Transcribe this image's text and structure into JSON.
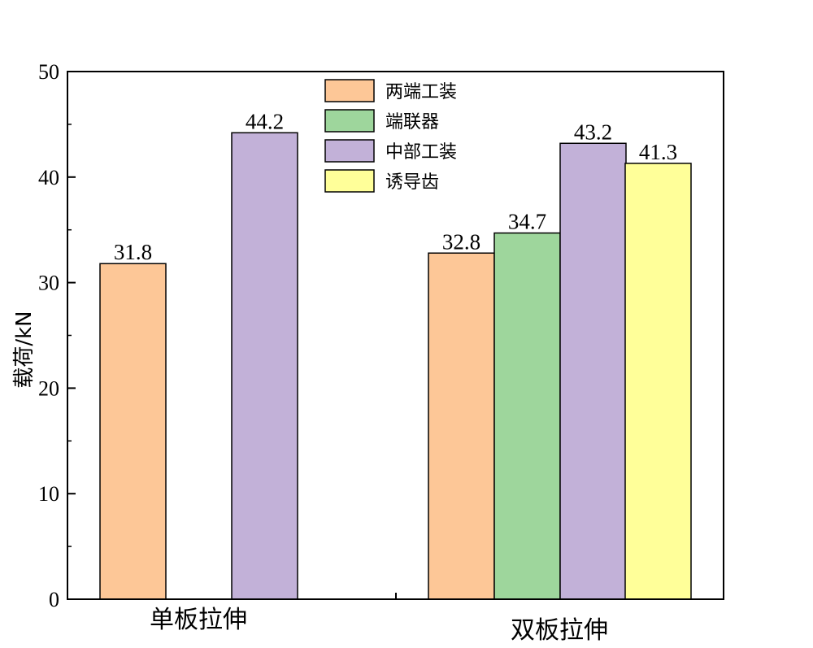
{
  "chart_data": {
    "type": "bar",
    "title": "",
    "xlabel": "",
    "ylabel": "载荷/kN",
    "ylim": [
      0,
      50
    ],
    "yticks": [
      0,
      10,
      20,
      30,
      40,
      50
    ],
    "grid": false,
    "legend_position": "top-center",
    "categories": [
      "单板拉伸",
      "双板拉伸"
    ],
    "series": [
      {
        "name": "两端工装",
        "color": "#FDC797",
        "values": [
          31.8,
          32.8
        ],
        "labels": [
          "31.8",
          "32.8"
        ]
      },
      {
        "name": "端联器",
        "color": "#9ED69C",
        "values": [
          null,
          34.7
        ],
        "labels": [
          "",
          "34.7"
        ]
      },
      {
        "name": "中部工装",
        "color": "#C2B1D8",
        "values": [
          44.2,
          43.2
        ],
        "labels": [
          "44.2",
          "43.2"
        ]
      },
      {
        "name": "诱导齿",
        "color": "#FFFF99",
        "values": [
          null,
          41.3
        ],
        "labels": [
          "",
          "41.3"
        ]
      }
    ]
  }
}
